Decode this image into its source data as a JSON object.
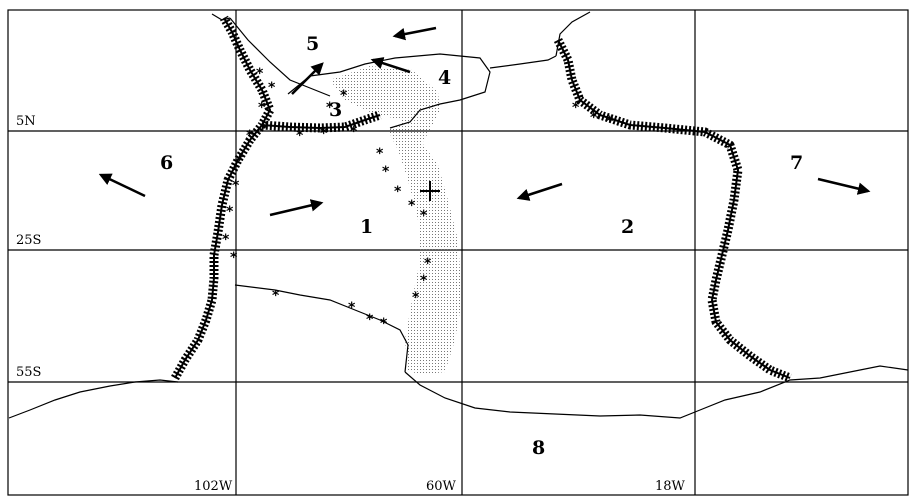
{
  "latitude_labels": [
    "5N",
    "25S",
    "55S"
  ],
  "longitude_labels": [
    "102W",
    "60W",
    "18W"
  ],
  "plates": [
    "1",
    "2",
    "3",
    "4",
    "5",
    "6",
    "7",
    "8"
  ]
}
